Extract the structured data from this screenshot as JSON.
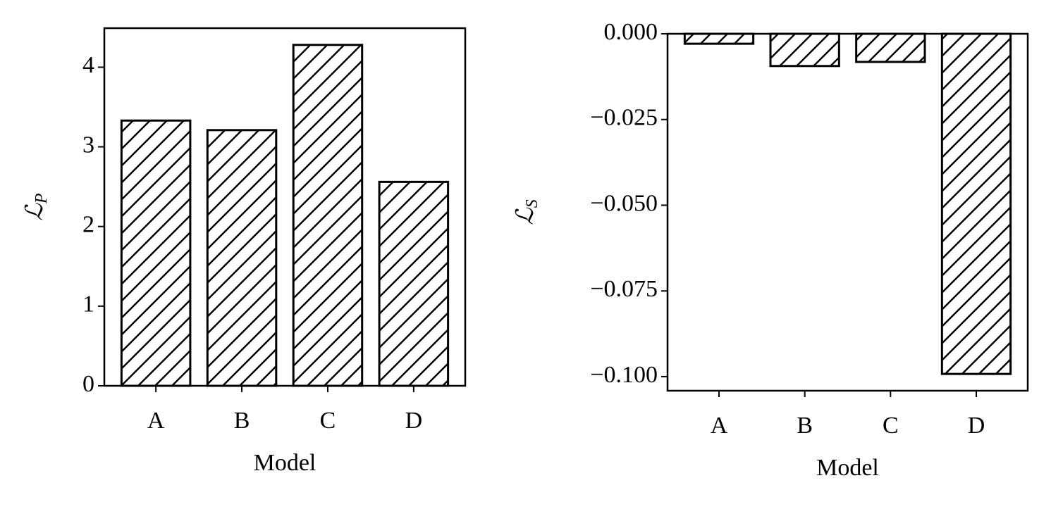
{
  "chart_data": [
    {
      "type": "bar",
      "ylabel": "ℒ",
      "ylabel_sub": "P",
      "xlabel": "Model",
      "categories": [
        "A",
        "B",
        "C",
        "D"
      ],
      "values": [
        3.33,
        3.21,
        4.28,
        2.56
      ],
      "color": "#ffffff",
      "edgecolor": "#000000",
      "hatch": "/",
      "ylim": [
        0,
        4.49
      ],
      "yticks": [
        0,
        1,
        2,
        3,
        4
      ],
      "grid": false
    },
    {
      "type": "bar",
      "ylabel": "ℒ",
      "ylabel_sub": "S",
      "xlabel": "Model",
      "categories": [
        "A",
        "B",
        "C",
        "D"
      ],
      "values": [
        -0.0029,
        -0.0094,
        -0.0082,
        -0.0992
      ],
      "color": "#ffffff",
      "edgecolor": "#000000",
      "hatch": "/",
      "ylim": [
        -0.1041,
        0
      ],
      "yticks": [
        {
          "value": 0,
          "label": "0.000"
        },
        {
          "value": -0.025,
          "label": "−0.025"
        },
        {
          "value": -0.05,
          "label": "−0.050"
        },
        {
          "value": -0.075,
          "label": "−0.075"
        },
        {
          "value": -0.1,
          "label": "−0.100"
        }
      ],
      "grid": false
    }
  ]
}
